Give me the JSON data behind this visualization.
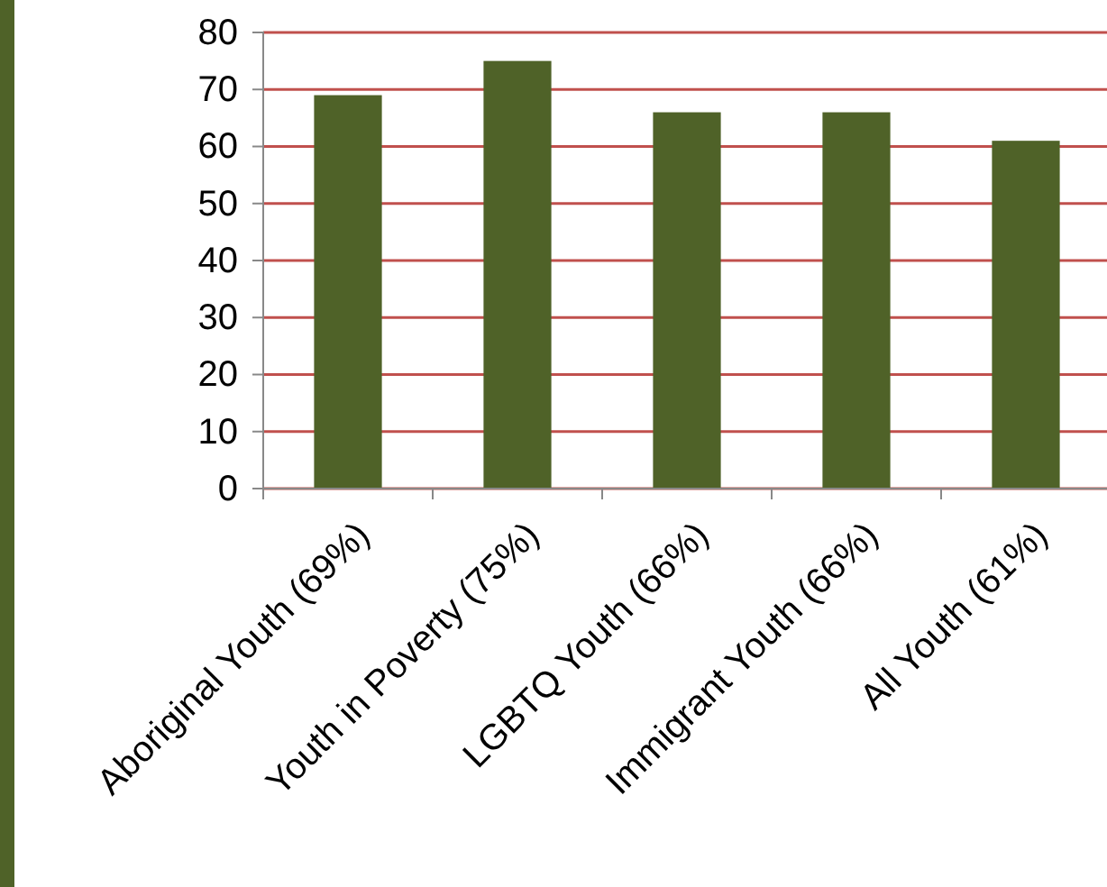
{
  "chart_data": {
    "type": "bar",
    "categories": [
      "Aboriginal Youth (69%)",
      "Youth in Poverty (75%)",
      "LGBTQ Youth (66%)",
      "Immigrant Youth (66%)",
      "All Youth (61%)"
    ],
    "values": [
      69,
      75,
      66,
      66,
      61
    ],
    "color": "#4f6228",
    "ylim": [
      0,
      80
    ],
    "yticks": [
      0,
      10,
      20,
      30,
      40,
      50,
      60,
      70,
      80
    ],
    "grid": "y"
  }
}
